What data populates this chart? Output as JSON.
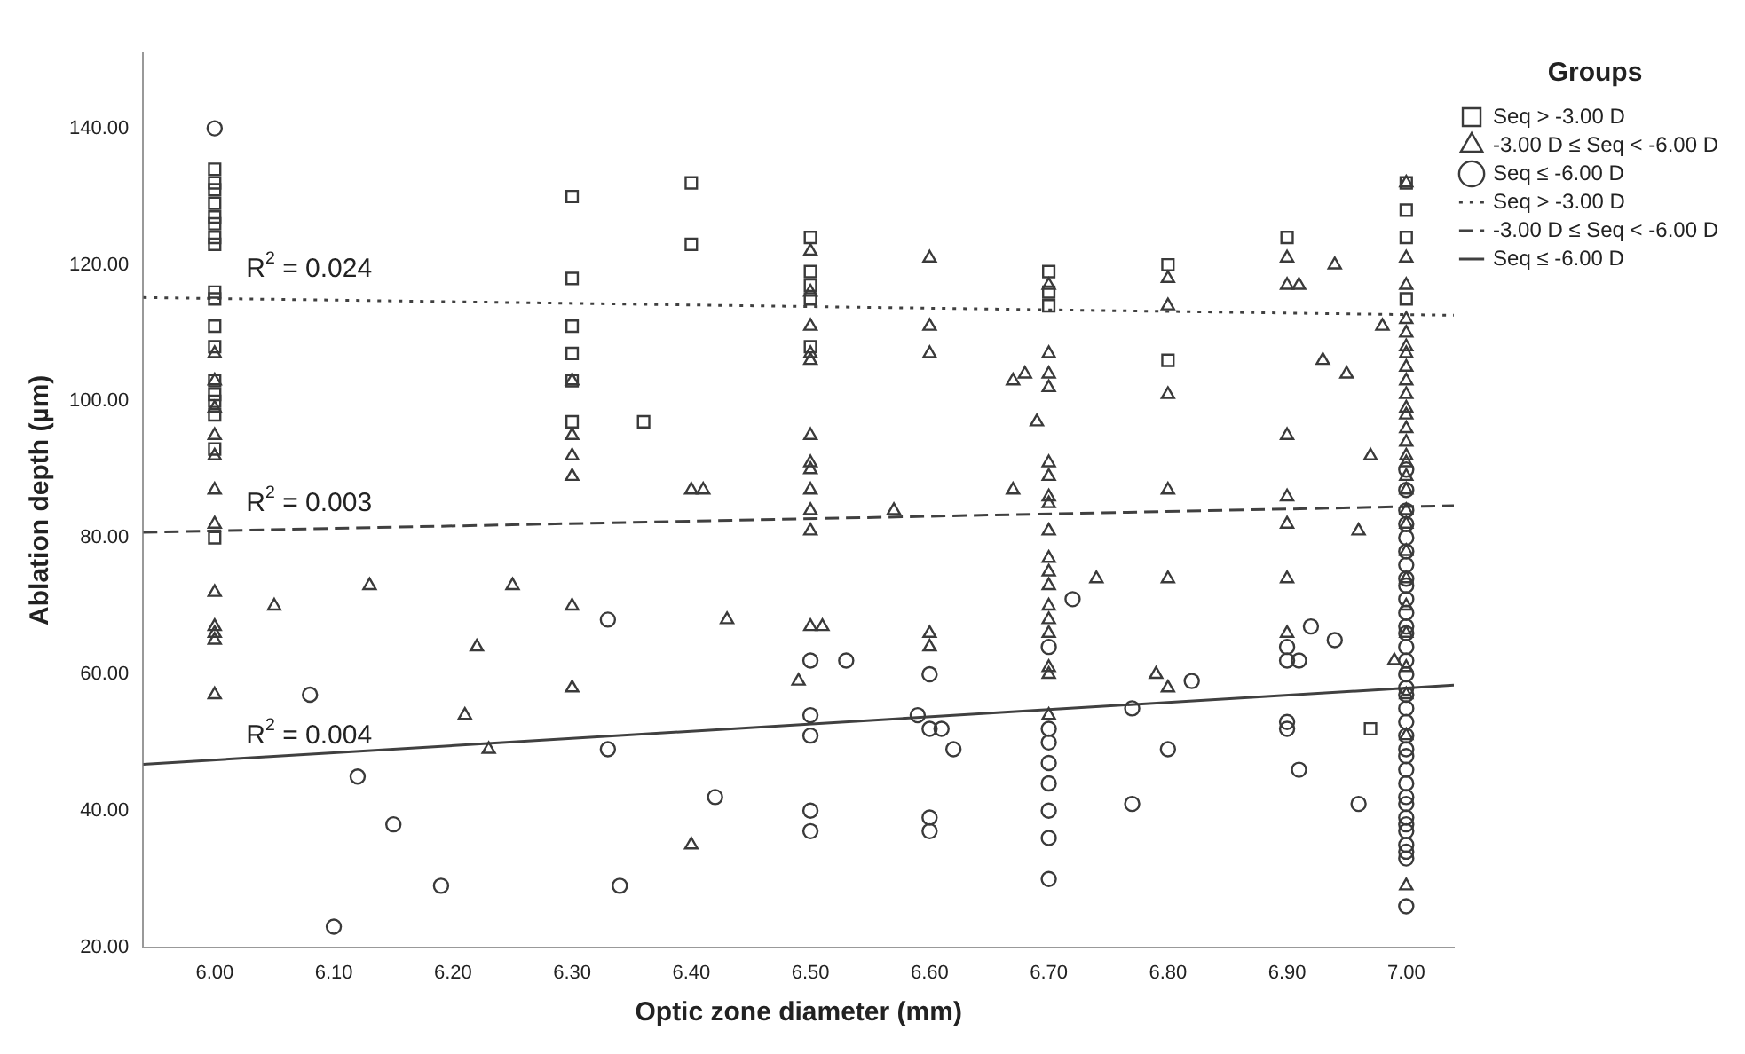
{
  "chart_data": {
    "type": "scatter",
    "xlabel": "Optic zone diameter (mm)",
    "ylabel": "Ablation depth (µm)",
    "legend_title": "Groups",
    "legend": "top right",
    "grid": false,
    "xlim": [
      5.94,
      7.04
    ],
    "xticks": [
      {
        "value": 6,
        "label": "6.00"
      },
      {
        "value": 6.1,
        "label": "6.10"
      },
      {
        "value": 6.2,
        "label": "6.20"
      },
      {
        "value": 6.3,
        "label": "6.30"
      },
      {
        "value": 6.4,
        "label": "6.40"
      },
      {
        "value": 6.5,
        "label": "6.50"
      },
      {
        "value": 6.6,
        "label": "6.60"
      },
      {
        "value": 6.7,
        "label": "6.70"
      },
      {
        "value": 6.8,
        "label": "6.80"
      },
      {
        "value": 6.9,
        "label": "6.90"
      },
      {
        "value": 7,
        "label": "7.00"
      }
    ],
    "ylim": [
      20,
      151
    ],
    "yticks": [
      {
        "value": 20,
        "label": "20.00"
      },
      {
        "value": 40,
        "label": "40.00"
      },
      {
        "value": 60,
        "label": "60.00"
      },
      {
        "value": 80,
        "label": "80.00"
      },
      {
        "value": 100,
        "label": "100.00"
      },
      {
        "value": 120,
        "label": "120.00"
      },
      {
        "value": 140,
        "label": "140.00"
      }
    ],
    "annotations": [
      "R$^{2}$ = 0.024",
      "R$^{2}$ = 0.003",
      "R$^{2}$ = 0.004"
    ],
    "series": [
      {
        "name": "Seq > -3.00 D",
        "type": "scatter",
        "marker": "square",
        "color": "#3a3a3a",
        "x": [
          6,
          6,
          6,
          6,
          6,
          6,
          6,
          6,
          6,
          6,
          6,
          6,
          6,
          6,
          6,
          6,
          6,
          6,
          6.3,
          6.3,
          6.3,
          6.3,
          6.3,
          6.3,
          6.36,
          6.4,
          6.4,
          6.5,
          6.5,
          6.5,
          6.5,
          6.5,
          6.7,
          6.7,
          6.7,
          6.8,
          6.8,
          6.9,
          6.97,
          7,
          7,
          7,
          7
        ],
        "values": [
          134,
          132,
          131,
          129,
          127,
          126,
          124,
          123,
          116,
          115,
          111,
          108,
          103,
          101,
          100,
          98,
          93,
          80,
          130,
          118,
          111,
          107,
          103,
          97,
          97,
          132,
          123,
          124,
          119,
          117,
          115,
          108,
          119,
          116,
          114,
          120,
          106,
          124,
          52,
          132,
          128,
          124,
          115
        ]
      },
      {
        "name": "-3.00 D ≤ Seq < -6.00 D",
        "type": "scatter",
        "marker": "triangle",
        "color": "#3a3a3a",
        "x": [
          6,
          6,
          6,
          6,
          6,
          6,
          6,
          6,
          6,
          6,
          6,
          6,
          6.05,
          6.13,
          6.25,
          6.22,
          6.21,
          6.23,
          6.3,
          6.3,
          6.3,
          6.3,
          6.3,
          6.3,
          6.4,
          6.4,
          6.41,
          6.43,
          6.5,
          6.5,
          6.5,
          6.5,
          6.5,
          6.5,
          6.5,
          6.5,
          6.5,
          6.5,
          6.5,
          6.5,
          6.51,
          6.49,
          6.57,
          6.6,
          6.6,
          6.6,
          6.6,
          6.6,
          6.67,
          6.67,
          6.68,
          6.69,
          6.7,
          6.7,
          6.7,
          6.7,
          6.7,
          6.7,
          6.7,
          6.7,
          6.7,
          6.7,
          6.7,
          6.7,
          6.7,
          6.7,
          6.7,
          6.7,
          6.7,
          6.7,
          6.74,
          6.8,
          6.8,
          6.8,
          6.8,
          6.8,
          6.8,
          6.79,
          6.9,
          6.9,
          6.9,
          6.9,
          6.9,
          6.9,
          6.9,
          6.91,
          6.94,
          6.93,
          6.95,
          6.97,
          6.96,
          6.98,
          6.99,
          7,
          7,
          7,
          7,
          7,
          7,
          7,
          7,
          7,
          7,
          7,
          7,
          7,
          7,
          7,
          7,
          7,
          7,
          7,
          7,
          7,
          7,
          7,
          7,
          7,
          7,
          7,
          7
        ],
        "values": [
          107,
          103,
          99,
          95,
          92,
          87,
          82,
          72,
          67,
          66,
          65,
          57,
          70,
          73,
          73,
          64,
          54,
          49,
          103,
          95,
          92,
          89,
          70,
          58,
          87,
          35,
          87,
          68,
          122,
          116,
          111,
          107,
          106,
          95,
          91,
          90,
          87,
          84,
          81,
          67,
          67,
          59,
          84,
          121,
          111,
          107,
          66,
          64,
          103,
          87,
          104,
          97,
          117,
          107,
          104,
          102,
          91,
          89,
          86,
          85,
          81,
          77,
          75,
          73,
          70,
          68,
          66,
          61,
          60,
          54,
          74,
          118,
          114,
          101,
          87,
          74,
          58,
          60,
          121,
          117,
          95,
          86,
          82,
          74,
          66,
          117,
          120,
          106,
          104,
          92,
          81,
          111,
          62,
          132,
          121,
          117,
          112,
          110,
          108,
          107,
          105,
          103,
          101,
          99,
          98,
          96,
          94,
          92,
          91,
          89,
          87,
          84,
          82,
          78,
          74,
          70,
          66,
          61,
          57,
          51,
          29
        ]
      },
      {
        "name": "Seq ≤ -6.00 D",
        "type": "scatter",
        "marker": "circle",
        "color": "#3a3a3a",
        "x": [
          6,
          6.08,
          6.12,
          6.15,
          6.19,
          6.1,
          6.33,
          6.33,
          6.34,
          6.42,
          6.5,
          6.5,
          6.5,
          6.5,
          6.5,
          6.53,
          6.6,
          6.6,
          6.6,
          6.6,
          6.59,
          6.61,
          6.62,
          6.7,
          6.7,
          6.7,
          6.7,
          6.7,
          6.7,
          6.7,
          6.7,
          6.72,
          6.82,
          6.77,
          6.77,
          6.8,
          6.9,
          6.9,
          6.9,
          6.9,
          6.91,
          6.91,
          6.92,
          6.94,
          6.96,
          7,
          7,
          7,
          7,
          7,
          7,
          7,
          7,
          7,
          7,
          7,
          7,
          7,
          7,
          7,
          7,
          7,
          7,
          7,
          7,
          7,
          7,
          7,
          7,
          7,
          7,
          7,
          7,
          7,
          7,
          7,
          7,
          7,
          7
        ],
        "values": [
          140,
          57,
          45,
          38,
          29,
          23,
          68,
          49,
          29,
          42,
          62,
          54,
          51,
          40,
          37,
          62,
          60,
          52,
          39,
          37,
          54,
          52,
          49,
          64,
          52,
          50,
          47,
          44,
          40,
          36,
          30,
          71,
          59,
          55,
          41,
          49,
          64,
          62,
          53,
          52,
          62,
          46,
          67,
          65,
          41,
          90,
          87,
          84,
          82,
          80,
          78,
          76,
          74,
          73,
          71,
          69,
          67,
          66,
          64,
          62,
          60,
          58,
          57,
          55,
          53,
          51,
          49,
          48,
          46,
          44,
          42,
          41,
          39,
          38,
          37,
          35,
          34,
          33,
          26
        ]
      },
      {
        "name": "Seq > -3.00 D",
        "type": "line",
        "line_style": "dotted",
        "color": "#404040",
        "x": [
          5.94,
          7.04
        ],
        "values": [
          115.2,
          112.6
        ]
      },
      {
        "name": "-3.00 D ≤ Seq < -6.00 D",
        "type": "line",
        "line_style": "dashed",
        "color": "#404040",
        "x": [
          5.94,
          7.04
        ],
        "values": [
          80.8,
          84.7
        ]
      },
      {
        "name": "Seq ≤ -6.00 D",
        "type": "line",
        "line_style": "solid",
        "color": "#404040",
        "x": [
          5.94,
          7.04
        ],
        "values": [
          46.8,
          58.4
        ]
      }
    ]
  }
}
